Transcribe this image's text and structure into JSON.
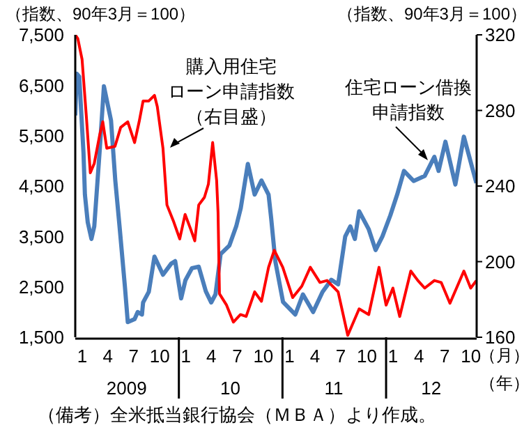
{
  "chart_data": {
    "type": "line",
    "ylabel": "（指数、90年3月＝100）",
    "y2label": "（指数、90年3月＝100）",
    "xlabel": "（月）",
    "x2label": "（年）",
    "annotations": [
      "購入用住宅",
      "ローン申請指数",
      "（右目盛）",
      "住宅ローン借換",
      "申請指数",
      "（備考）全米抵当銀行協会（ＭＢＡ）より作成。"
    ],
    "xlim": [
      "2009-01-01",
      "2012-11-15"
    ],
    "xticks": [
      {
        "value": "2009-01",
        "label": "1"
      },
      {
        "value": "2009-04",
        "label": "4"
      },
      {
        "value": "2009-07",
        "label": "7"
      },
      {
        "value": "2009-10",
        "label": "10"
      },
      {
        "value": "2010-01",
        "label": "1"
      },
      {
        "value": "2010-04",
        "label": "4"
      },
      {
        "value": "2010-07",
        "label": "7"
      },
      {
        "value": "2010-10",
        "label": "10"
      },
      {
        "value": "2011-01",
        "label": "1"
      },
      {
        "value": "2011-04",
        "label": "4"
      },
      {
        "value": "2011-07",
        "label": "7"
      },
      {
        "value": "2011-10",
        "label": "10"
      },
      {
        "value": "2012-01",
        "label": "1"
      },
      {
        "value": "2012-04",
        "label": "4"
      },
      {
        "value": "2012-07",
        "label": "7"
      },
      {
        "value": "2012-10",
        "label": "10"
      }
    ],
    "x2lim": [
      "2009-01-01",
      "2012-11-15"
    ],
    "x2ticks": [
      {
        "value": "2009-07",
        "label": "2009"
      },
      {
        "value": "2010-07",
        "label": "10"
      },
      {
        "value": "2011-07",
        "label": "11"
      },
      {
        "value": "2012-06-08",
        "label": "12"
      }
    ],
    "ylim": [
      1500,
      7500
    ],
    "yticks": [
      {
        "value": 1500,
        "label": "1,500"
      },
      {
        "value": 2500,
        "label": "2,500"
      },
      {
        "value": 3500,
        "label": "3,500"
      },
      {
        "value": 4500,
        "label": "4,500"
      },
      {
        "value": 5500,
        "label": "5,500"
      },
      {
        "value": 6500,
        "label": "6,500"
      },
      {
        "value": 7500,
        "label": "7,500"
      }
    ],
    "y2lim": [
      160,
      320
    ],
    "y2ticks": [
      160,
      200,
      240,
      280,
      320
    ],
    "marker": "none",
    "line_style": "solid",
    "series": [
      {
        "color": "#4a7ebb",
        "x": [
          "2009-01-01",
          "2009-01-06",
          "2009-01-15",
          "2009-01-30",
          "2009-02-04",
          "2009-02-14",
          "2009-02-27",
          "2009-03-09",
          "2009-03-28",
          "2009-04-12",
          "2009-05-07",
          "2009-05-22",
          "2009-06-06",
          "2009-06-25",
          "2009-07-05",
          "2009-07-29",
          "2009-08-09",
          "2009-08-24",
          "2009-08-28",
          "2009-09-17",
          "2009-10-07",
          "2009-11-06",
          "2009-12-05",
          "2009-12-19",
          "2010-01-09",
          "2010-01-24",
          "2010-02-16",
          "2010-03-12",
          "2010-04-06",
          "2010-04-25",
          "2010-05-10",
          "2010-05-28",
          "2010-06-28",
          "2010-07-22",
          "2010-08-07",
          "2010-09-01",
          "2010-09-25",
          "2010-10-19",
          "2010-11-13",
          "2010-11-22",
          "2010-12-07",
          "2011-01-03",
          "2011-02-15",
          "2011-03-14",
          "2011-04-19",
          "2011-05-22",
          "2011-06-22",
          "2011-07-16",
          "2011-08-10",
          "2011-08-28",
          "2011-09-13",
          "2011-09-28",
          "2011-11-01",
          "2011-11-25",
          "2011-12-19",
          "2012-01-16",
          "2012-02-09",
          "2012-03-04",
          "2012-04-07",
          "2012-05-16",
          "2012-06-19",
          "2012-07-04",
          "2012-07-28",
          "2012-09-01",
          "2012-10-01",
          "2012-11-14"
        ],
        "values": [
          5900,
          6730,
          6670,
          5160,
          4330,
          3780,
          3450,
          3700,
          5200,
          6480,
          5800,
          4610,
          3700,
          2500,
          1800,
          1860,
          2000,
          1950,
          2190,
          2400,
          3100,
          2740,
          2960,
          3010,
          2270,
          2630,
          2870,
          2900,
          2410,
          2190,
          2350,
          3150,
          3320,
          3700,
          4060,
          4940,
          4330,
          4610,
          4330,
          3870,
          3000,
          2200,
          1950,
          2350,
          2000,
          2400,
          2640,
          2550,
          3500,
          3700,
          3450,
          4000,
          3640,
          3230,
          3500,
          3920,
          4330,
          4800,
          4600,
          4700,
          5080,
          4800,
          5380,
          4530,
          5480,
          4560
        ]
      },
      {
        "color": "#ff0000",
        "axis": "y2",
        "x": [
          "2009-01-01",
          "2009-01-10",
          "2009-01-25",
          "2009-02-09",
          "2009-02-23",
          "2009-03-09",
          "2009-03-28",
          "2009-04-08",
          "2009-04-22",
          "2009-05-21",
          "2009-06-10",
          "2009-07-05",
          "2009-07-29",
          "2009-08-14",
          "2009-08-28",
          "2009-09-17",
          "2009-10-07",
          "2009-10-17",
          "2009-11-06",
          "2009-11-20",
          "2009-12-14",
          "2010-01-04",
          "2010-01-23",
          "2010-02-12",
          "2010-02-26",
          "2010-03-12",
          "2010-04-01",
          "2010-04-15",
          "2010-04-30",
          "2010-05-14",
          "2010-05-19",
          "2010-05-24",
          "2010-06-18",
          "2010-07-12",
          "2010-08-06",
          "2010-08-26",
          "2010-09-25",
          "2010-10-19",
          "2010-11-13",
          "2010-12-03",
          "2011-01-02",
          "2011-02-06",
          "2011-03-10",
          "2011-04-09",
          "2011-05-13",
          "2011-06-07",
          "2011-07-16",
          "2011-08-19",
          "2011-09-28",
          "2011-11-01",
          "2011-12-07",
          "2012-01-01",
          "2012-01-25",
          "2012-02-18",
          "2012-03-28",
          "2012-04-22",
          "2012-05-16",
          "2012-06-19",
          "2012-07-13",
          "2012-08-13",
          "2012-10-01",
          "2012-10-25",
          "2012-11-14"
        ],
        "values": [
          320,
          318,
          307,
          277,
          247,
          252,
          267,
          274,
          260,
          261,
          271,
          274,
          263,
          274,
          285,
          285,
          288,
          282,
          260,
          230,
          221,
          212,
          225,
          217,
          211,
          230,
          234,
          241,
          263,
          243,
          226,
          183,
          177,
          168,
          172,
          171,
          184,
          179,
          197,
          206,
          197,
          181,
          187,
          197,
          189,
          190,
          184,
          161,
          175,
          172,
          197,
          177,
          186,
          171,
          195,
          190,
          186,
          190,
          189,
          178,
          195,
          186,
          190
        ]
      }
    ]
  }
}
